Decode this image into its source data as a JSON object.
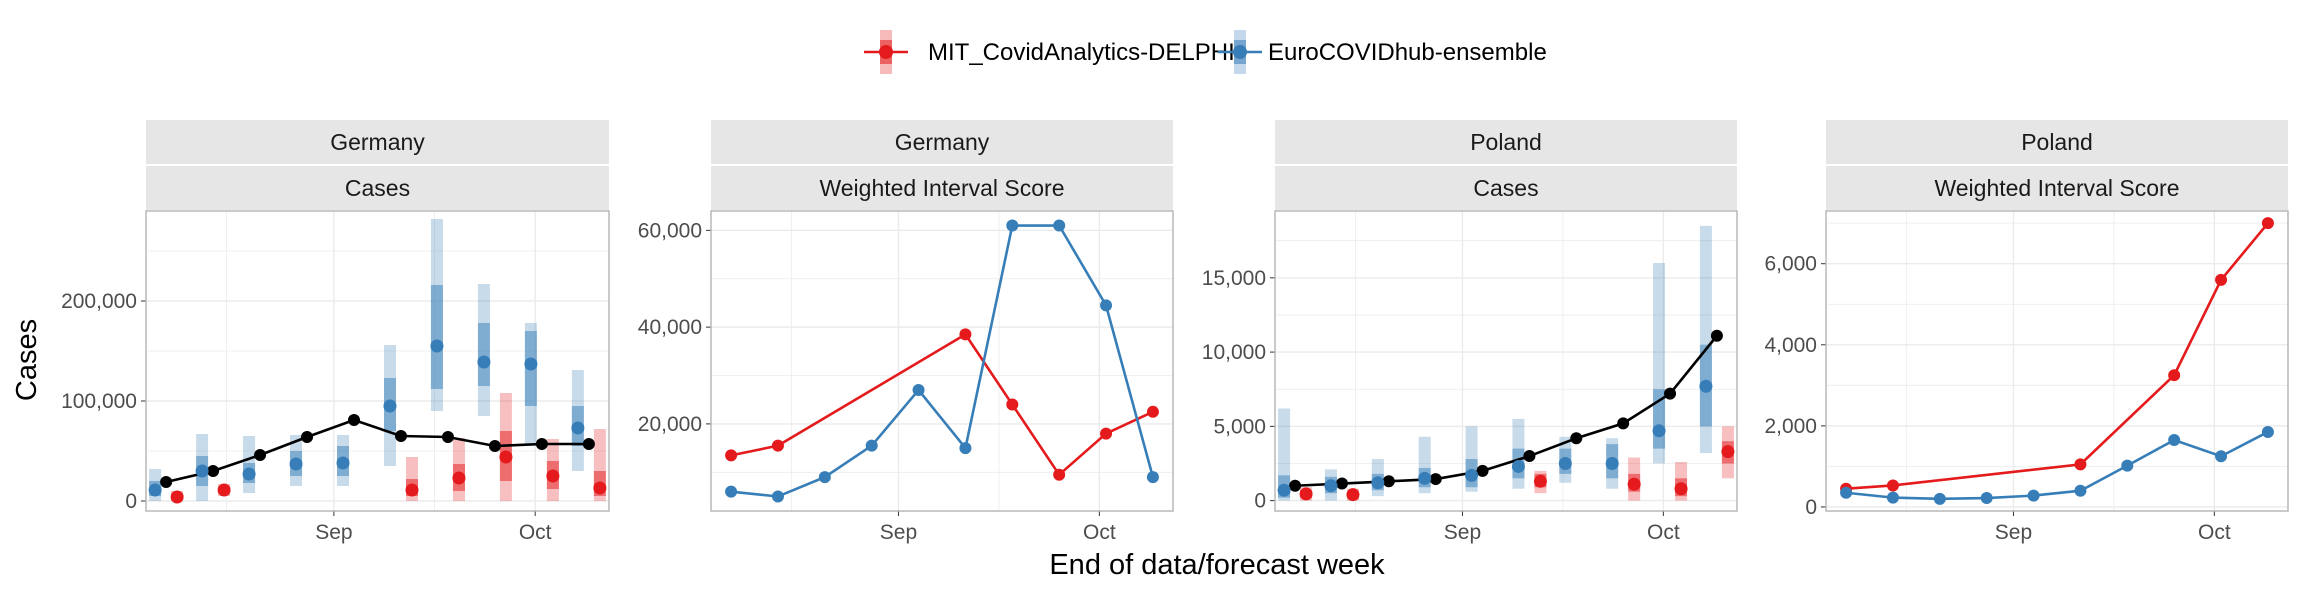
{
  "figure": {
    "xlabel": "End of data/forecast week",
    "ylabel": "Cases"
  },
  "legend": {
    "placement": "top",
    "items": [
      {
        "name": "MIT_CovidAnalytics-DELPHI",
        "color": "#e41a1c"
      },
      {
        "name": "EuroCOVIDhub-ensemble",
        "color": "#377eb8"
      }
    ]
  },
  "colors": {
    "observed": "#000000",
    "delphi": "#e41a1c",
    "ensemble": "#377eb8",
    "strip": "#e6e6e6",
    "grid": "#ebebeb"
  },
  "chart_data": [
    {
      "type": "line",
      "strip": [
        "Germany",
        "Cases"
      ],
      "x": [
        "2021-08-07",
        "2021-08-14",
        "2021-08-21",
        "2021-08-28",
        "2021-09-04",
        "2021-09-11",
        "2021-09-18",
        "2021-09-25",
        "2021-10-02",
        "2021-10-09"
      ],
      "xticks": [
        "Sep",
        "Oct"
      ],
      "ylim": [
        -10000,
        290000
      ],
      "yticks": [
        "0",
        "100,000",
        "200,000"
      ],
      "yticks_values": [
        0,
        100000,
        200000
      ],
      "observed": [
        19000,
        30000,
        46000,
        64000,
        81000,
        65000,
        64000,
        55000,
        57000,
        57000
      ],
      "series": [
        {
          "name": "MIT_CovidAnalytics-DELPHI",
          "median": [
            4000,
            11000,
            null,
            null,
            null,
            11000,
            23000,
            44000,
            25000,
            13000
          ],
          "q50": [
            [
              1500,
              7000
            ],
            [
              8000,
              14000
            ],
            null,
            null,
            null,
            [
              5000,
              22000
            ],
            [
              10000,
              37000
            ],
            [
              20000,
              70000
            ],
            [
              12000,
              40000
            ],
            [
              5000,
              30000
            ]
          ],
          "q90": [
            [
              0,
              10000
            ],
            [
              5000,
              17000
            ],
            null,
            null,
            null,
            [
              0,
              44000
            ],
            [
              0,
              63000
            ],
            [
              0,
              108000
            ],
            [
              0,
              62000
            ],
            [
              0,
              72000
            ]
          ]
        },
        {
          "name": "EuroCOVIDhub-ensemble",
          "median": [
            11000,
            30000,
            27000,
            37000,
            38000,
            95000,
            155000,
            139000,
            137000,
            73000
          ],
          "q50": [
            [
              5000,
              20000
            ],
            [
              15000,
              45000
            ],
            [
              18000,
              38000
            ],
            [
              25000,
              50000
            ],
            [
              25000,
              55000
            ],
            [
              70000,
              123000
            ],
            [
              112000,
              216000
            ],
            [
              115000,
              178000
            ],
            [
              95000,
              170000
            ],
            [
              55000,
              95000
            ]
          ],
          "q90": [
            [
              0,
              32000
            ],
            [
              0,
              67000
            ],
            [
              8000,
              65000
            ],
            [
              15000,
              66000
            ],
            [
              15000,
              66000
            ],
            [
              35000,
              156000
            ],
            [
              90000,
              282000
            ],
            [
              85000,
              217000
            ],
            [
              55000,
              178000
            ],
            [
              30000,
              131000
            ]
          ]
        }
      ]
    },
    {
      "type": "line",
      "strip": [
        "Germany",
        "Weighted Interval Score"
      ],
      "x": [
        "2021-08-07",
        "2021-08-14",
        "2021-08-21",
        "2021-08-28",
        "2021-09-04",
        "2021-09-11",
        "2021-09-18",
        "2021-09-25",
        "2021-10-02",
        "2021-10-09"
      ],
      "xticks": [
        "Sep",
        "Oct"
      ],
      "ylim": [
        2000,
        64000
      ],
      "yticks": [
        "20,000",
        "40,000",
        "60,000"
      ],
      "yticks_values": [
        20000,
        40000,
        60000
      ],
      "series": [
        {
          "name": "MIT_CovidAnalytics-DELPHI",
          "values": [
            13500,
            15500,
            null,
            null,
            null,
            38500,
            24000,
            9500,
            18000,
            22500
          ]
        },
        {
          "name": "EuroCOVIDhub-ensemble",
          "values": [
            6000,
            5000,
            9000,
            15500,
            27000,
            15000,
            61000,
            61000,
            44500,
            9000
          ]
        }
      ]
    },
    {
      "type": "line",
      "strip": [
        "Poland",
        "Cases"
      ],
      "x": [
        "2021-08-07",
        "2021-08-14",
        "2021-08-21",
        "2021-08-28",
        "2021-09-04",
        "2021-09-11",
        "2021-09-18",
        "2021-09-25",
        "2021-10-02",
        "2021-10-09"
      ],
      "xticks": [
        "Sep",
        "Oct"
      ],
      "ylim": [
        -700,
        19500
      ],
      "yticks": [
        "0",
        "5,000",
        "10,000",
        "15,000"
      ],
      "yticks_values": [
        0,
        5000,
        10000,
        15000
      ],
      "observed": [
        1000,
        1150,
        1300,
        1450,
        2000,
        3000,
        4200,
        5200,
        7200,
        11100
      ],
      "series": [
        {
          "name": "MIT_CovidAnalytics-DELPHI",
          "median": [
            450,
            400,
            null,
            null,
            null,
            1300,
            null,
            1100,
            800,
            3300
          ],
          "q50": [
            [
              200,
              700
            ],
            [
              200,
              600
            ],
            null,
            null,
            null,
            [
              900,
              1800
            ],
            null,
            [
              600,
              1800
            ],
            [
              300,
              1500
            ],
            [
              2500,
              4000
            ]
          ],
          "q90": [
            [
              0,
              900
            ],
            [
              0,
              800
            ],
            null,
            null,
            null,
            [
              500,
              2000
            ],
            null,
            [
              0,
              2900
            ],
            [
              0,
              2600
            ],
            [
              1500,
              5000
            ]
          ]
        },
        {
          "name": "EuroCOVIDhub-ensemble",
          "median": [
            700,
            1000,
            1200,
            1500,
            1700,
            2300,
            2500,
            2500,
            4700,
            7700
          ],
          "q50": [
            [
              200,
              1700
            ],
            [
              500,
              1600
            ],
            [
              700,
              1800
            ],
            [
              900,
              2200
            ],
            [
              900,
              2800
            ],
            [
              1500,
              3500
            ],
            [
              1800,
              3500
            ],
            [
              1500,
              3800
            ],
            [
              3500,
              7500
            ],
            [
              5000,
              10500
            ]
          ],
          "q90": [
            [
              0,
              6200
            ],
            [
              0,
              2100
            ],
            [
              300,
              2800
            ],
            [
              500,
              4300
            ],
            [
              600,
              5000
            ],
            [
              800,
              5500
            ],
            [
              1200,
              4300
            ],
            [
              800,
              4200
            ],
            [
              2500,
              16000
            ],
            [
              3200,
              18500
            ]
          ]
        }
      ]
    },
    {
      "type": "line",
      "strip": [
        "Poland",
        "Weighted Interval Score"
      ],
      "x": [
        "2021-08-07",
        "2021-08-14",
        "2021-08-21",
        "2021-08-28",
        "2021-09-04",
        "2021-09-11",
        "2021-09-18",
        "2021-09-25",
        "2021-10-02",
        "2021-10-09"
      ],
      "xticks": [
        "Sep",
        "Oct"
      ],
      "ylim": [
        -100,
        7300
      ],
      "yticks": [
        "0",
        "2,000",
        "4,000",
        "6,000"
      ],
      "yticks_values": [
        0,
        2000,
        4000,
        6000
      ],
      "series": [
        {
          "name": "MIT_CovidAnalytics-DELPHI",
          "values": [
            450,
            530,
            null,
            null,
            null,
            1050,
            null,
            3250,
            5600,
            7000
          ]
        },
        {
          "name": "EuroCOVIDhub-ensemble",
          "values": [
            350,
            230,
            200,
            220,
            280,
            400,
            1020,
            1650,
            1250,
            1850
          ]
        }
      ]
    }
  ]
}
